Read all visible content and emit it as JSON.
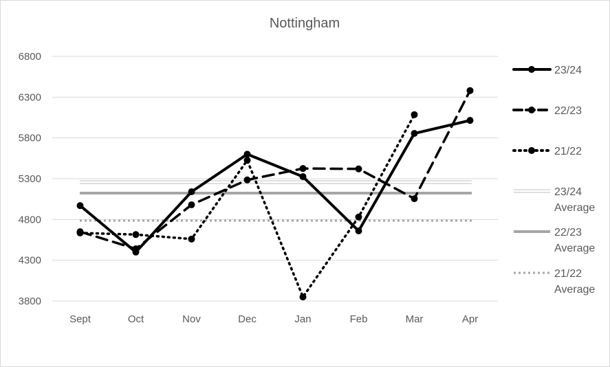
{
  "chart_data": {
    "type": "line",
    "title": "Nottingham",
    "xlabel": "",
    "ylabel": "",
    "categories": [
      "Sept",
      "Oct",
      "Nov",
      "Dec",
      "Jan",
      "Feb",
      "Mar",
      "Apr"
    ],
    "ylim": [
      3800,
      6800
    ],
    "yticks": [
      3800,
      4300,
      4800,
      5300,
      5800,
      6300,
      6800
    ],
    "grid": true,
    "legend_position": "right",
    "series": [
      {
        "name": "23/24",
        "style": "solid",
        "values": [
          4970,
          4400,
          5140,
          5600,
          5325,
          4660,
          5855,
          6015
        ]
      },
      {
        "name": "22/23",
        "style": "dashed",
        "values": [
          4650,
          4440,
          4980,
          5285,
          5425,
          5420,
          5055,
          6380
        ]
      },
      {
        "name": "21/22",
        "style": "dotted",
        "values": [
          4635,
          4615,
          4560,
          5525,
          3850,
          4830,
          6085,
          null
        ]
      }
    ],
    "averages": [
      {
        "name": "23/24 Average",
        "label_lines": [
          "23/24",
          "Average"
        ],
        "value": 5258,
        "color": "#ffffff",
        "outline": "#bfbfbf"
      },
      {
        "name": "22/23 Average",
        "label_lines": [
          "22/23",
          "Average"
        ],
        "value": 5123,
        "color": "#a6a6a6"
      },
      {
        "name": "21/22 Average",
        "label_lines": [
          "21/22",
          "Average"
        ],
        "value": 4786,
        "color": "#a6a6a6"
      }
    ]
  }
}
